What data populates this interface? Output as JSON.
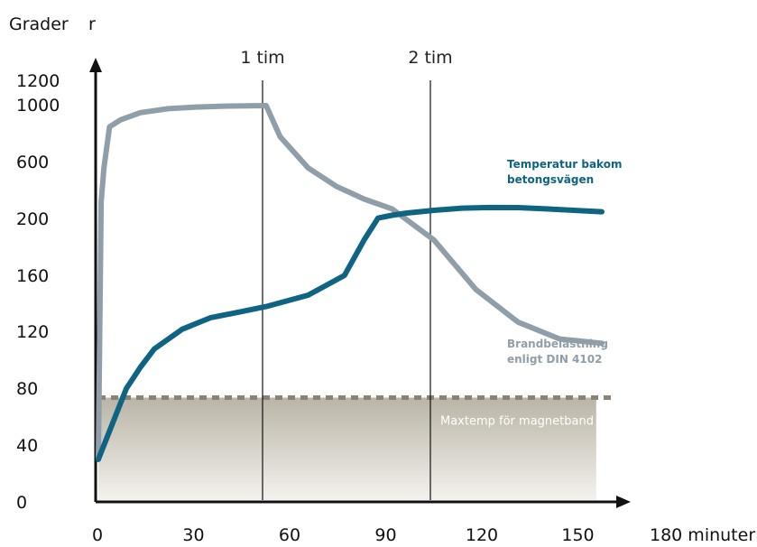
{
  "chart_data": {
    "type": "line",
    "ylabel_parts": [
      "Grader",
      "r"
    ],
    "y_ticks": [
      "1200",
      "1000",
      "600",
      "200",
      "160",
      "120",
      "80",
      "40",
      "0"
    ],
    "x_ticks": [
      "0",
      "30",
      "60",
      "90",
      "120",
      "150",
      "180 minuter"
    ],
    "x_range": [
      0,
      180
    ],
    "markers": [
      {
        "label": "1 tim",
        "x": 60
      },
      {
        "label": "2 tim",
        "x": 120
      }
    ],
    "band": {
      "label": "Maxtemp för magnetband",
      "x_end": 178,
      "level": 80
    },
    "series": [
      {
        "name_lines": [
          "Brandbelastning",
          "enligt DIN 4102"
        ],
        "color": "#8f9ea8",
        "points": [
          [
            0,
            30
          ],
          [
            1,
            320
          ],
          [
            2,
            560
          ],
          [
            4,
            850
          ],
          [
            8,
            900
          ],
          [
            15,
            950
          ],
          [
            25,
            978
          ],
          [
            35,
            990
          ],
          [
            45,
            996
          ],
          [
            60,
            1000
          ],
          [
            65,
            780
          ],
          [
            75,
            560
          ],
          [
            85,
            430
          ],
          [
            95,
            340
          ],
          [
            105,
            270
          ],
          [
            120,
            185
          ],
          [
            135,
            150
          ],
          [
            150,
            127
          ],
          [
            165,
            115
          ],
          [
            180,
            112
          ]
        ]
      },
      {
        "name_lines": [
          "Temperatur bakom",
          "betongsvägen"
        ],
        "color": "#0e6482",
        "points": [
          [
            0,
            30
          ],
          [
            5,
            55
          ],
          [
            10,
            80
          ],
          [
            15,
            95
          ],
          [
            20,
            108
          ],
          [
            30,
            122
          ],
          [
            40,
            130
          ],
          [
            50,
            134
          ],
          [
            60,
            138
          ],
          [
            75,
            146
          ],
          [
            88,
            160
          ],
          [
            95,
            185
          ],
          [
            100,
            205
          ],
          [
            105,
            225
          ],
          [
            110,
            240
          ],
          [
            120,
            260
          ],
          [
            130,
            275
          ],
          [
            140,
            280
          ],
          [
            150,
            279
          ],
          [
            160,
            270
          ],
          [
            170,
            260
          ],
          [
            180,
            250
          ]
        ]
      }
    ]
  }
}
